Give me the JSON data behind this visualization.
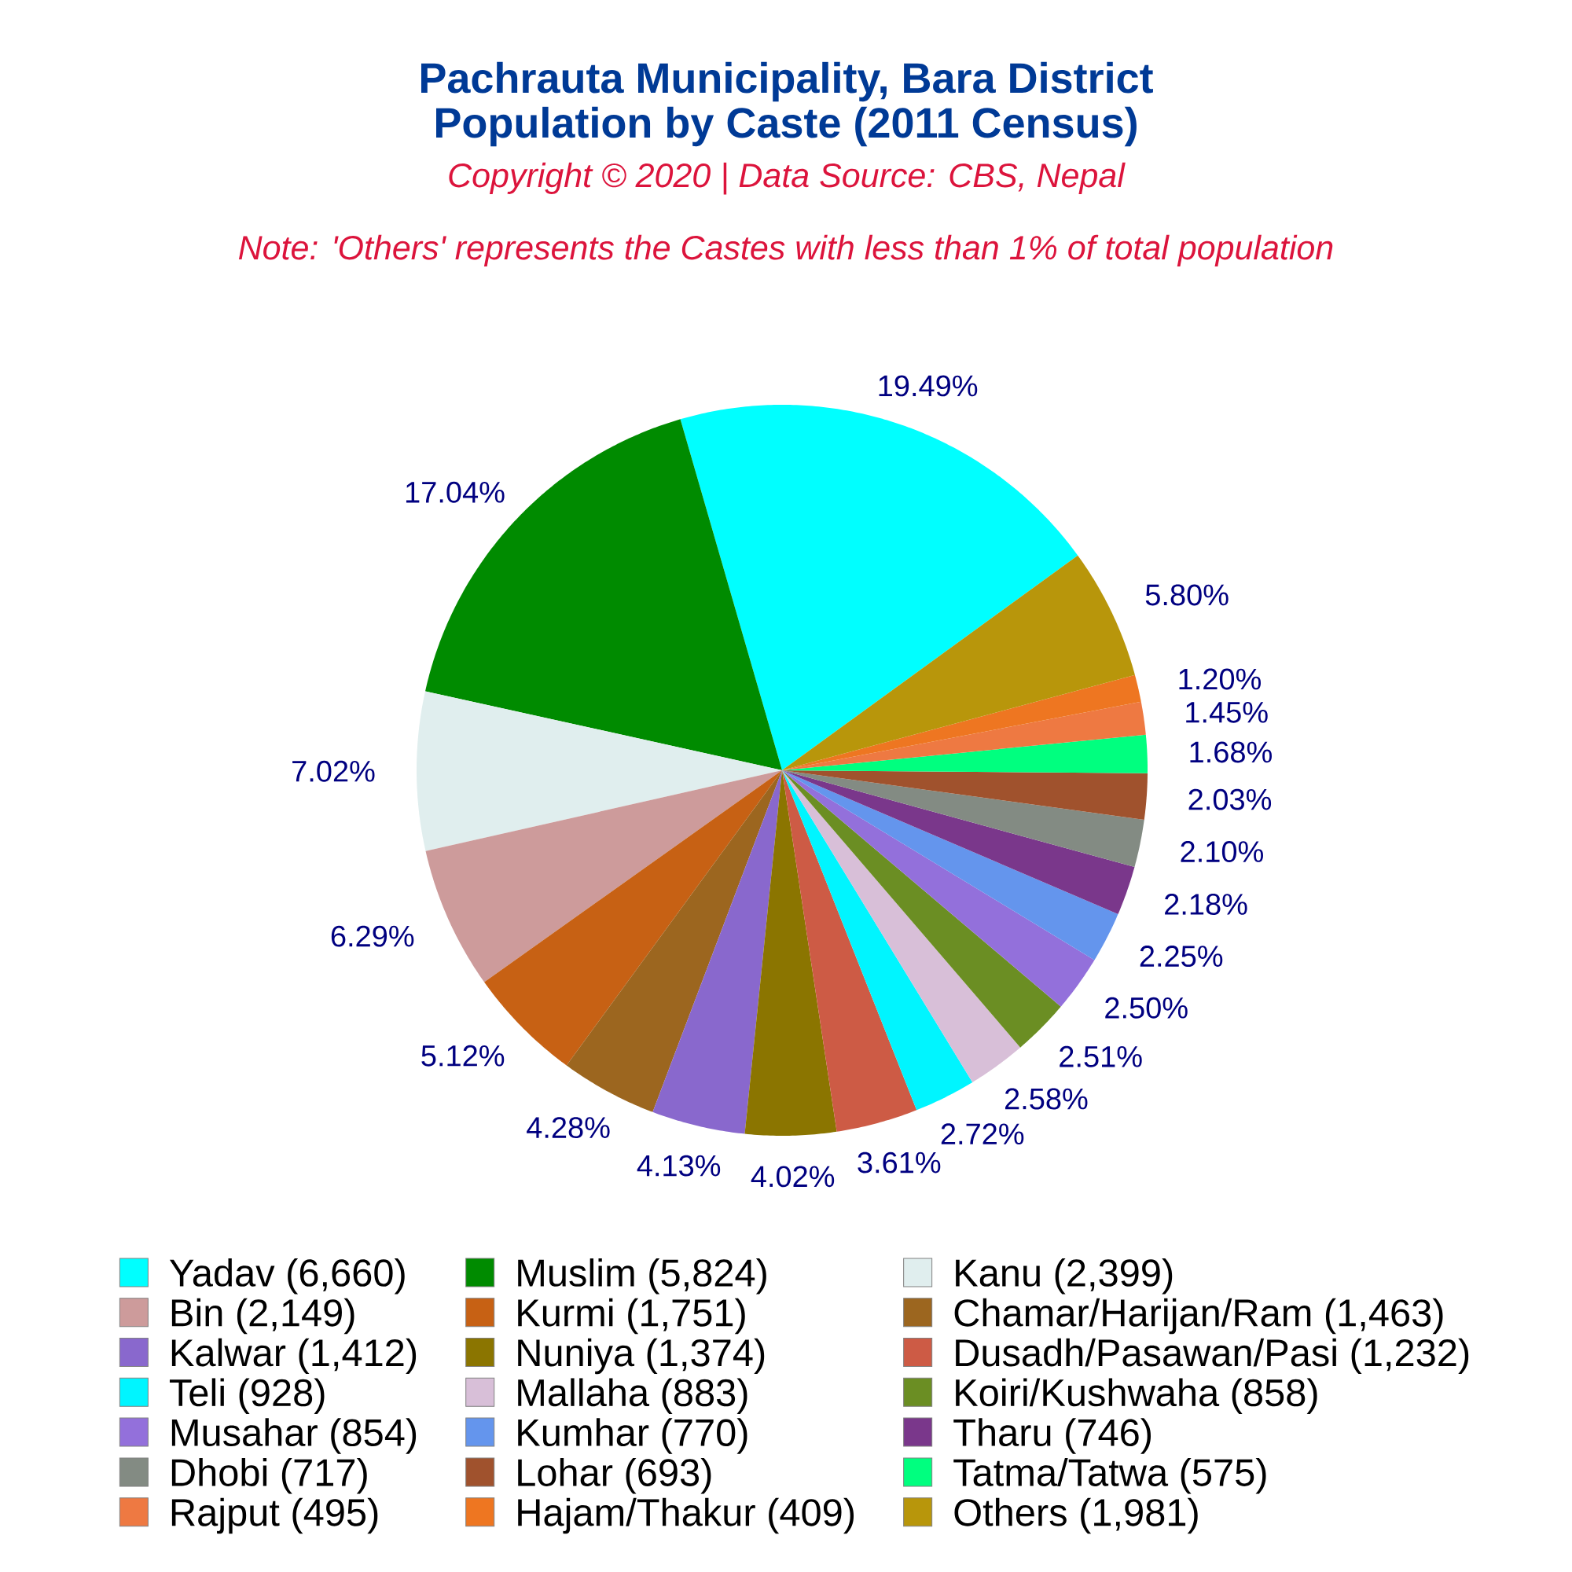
{
  "chart_data": {
    "type": "pie",
    "title": "Pachrauta Municipality, Bara District",
    "subtitle": "Population by Caste (2011 Census)",
    "annotations": [
      "Copyright © 2020 | Data Source: CBS, Nepal",
      "Note: 'Others' represents the Castes with less than 1% of total population"
    ],
    "categories": [
      "Yadav (6,660)",
      "Muslim (5,824)",
      "Kanu (2,399)",
      "Bin (2,149)",
      "Kurmi (1,751)",
      "Chamar/Harijan/Ram (1,463)",
      "Kalwar (1,412)",
      "Nuniya (1,374)",
      "Dusadh/Pasawan/Pasi (1,232)",
      "Teli (928)",
      "Mallaha (883)",
      "Koiri/Kushwaha (858)",
      "Musahar (854)",
      "Kumhar (770)",
      "Tharu (746)",
      "Dhobi (717)",
      "Lohar (693)",
      "Tatma/Tatwa (575)",
      "Rajput (495)",
      "Hajam/Thakur (409)",
      "Others (1,981)"
    ],
    "values": [
      19.49,
      17.04,
      7.02,
      6.29,
      5.12,
      4.28,
      4.13,
      4.02,
      3.61,
      2.72,
      2.58,
      2.51,
      2.5,
      2.25,
      2.18,
      2.1,
      2.03,
      1.68,
      1.45,
      1.2,
      5.8
    ],
    "colors": [
      "#00FFFF",
      "#008B00",
      "#E0EEEE",
      "#CD9B9B",
      "#C76114",
      "#9C661F",
      "#8968CD",
      "#8B7500",
      "#CD5B45",
      "#00F5FF",
      "#D8BFD8",
      "#6B8E23",
      "#9370DB",
      "#6495ED",
      "#7A378B",
      "#838B83",
      "#A0522D",
      "#00FF7F",
      "#EE7942",
      "#EE7621",
      "#B8960B"
    ],
    "value_labels": [
      "19.49%",
      "17.04%",
      "7.02%",
      "6.29%",
      "5.12%",
      "4.28%",
      "4.13%",
      "4.02%",
      "3.61%",
      "2.72%",
      "2.58%",
      "2.51%",
      "2.50%",
      "2.25%",
      "2.18%",
      "2.10%",
      "2.03%",
      "1.68%",
      "1.45%",
      "1.20%",
      "5.80%"
    ],
    "legend": "bottom"
  }
}
